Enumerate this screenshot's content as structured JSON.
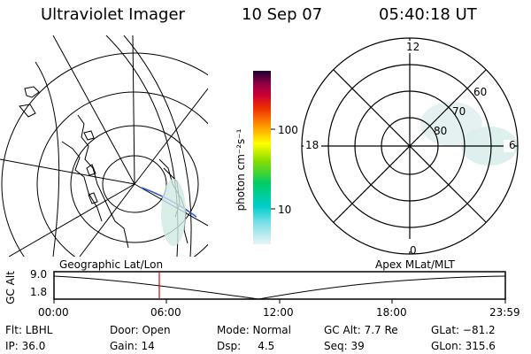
{
  "header": {
    "instrument": "Ultraviolet Imager",
    "date": "10 Sep 07",
    "time": "05:40:18 UT"
  },
  "colorbar": {
    "label": "photon cm⁻²s⁻¹",
    "ticks": [
      "100",
      "10"
    ]
  },
  "polar": {
    "mlt_labels": [
      "12",
      "18",
      "6",
      "0"
    ],
    "lat_labels": [
      "60",
      "70",
      "80"
    ]
  },
  "map_labels": {
    "left": "Geographic Lat/Lon",
    "right": "Apex MLat/MLT"
  },
  "altitude_plot": {
    "ylabel": "GC Alt",
    "yticks": [
      "9.0",
      "1.8"
    ],
    "xticks": [
      "00:00",
      "06:00",
      "12:00",
      "18:00",
      "23:59"
    ]
  },
  "info": {
    "flt": "Flt: LBHL",
    "door": "Door: Open",
    "mode": "Mode: Normal",
    "gc_alt": "GC Alt: 7.7 Re",
    "glat": "GLat: −81.2",
    "ip": "IP: 36.0",
    "gain": "Gain: 14",
    "dsp": "Dsp:     4.5",
    "seq": "Seq: 39",
    "glon": "GLon: 315.6"
  }
}
